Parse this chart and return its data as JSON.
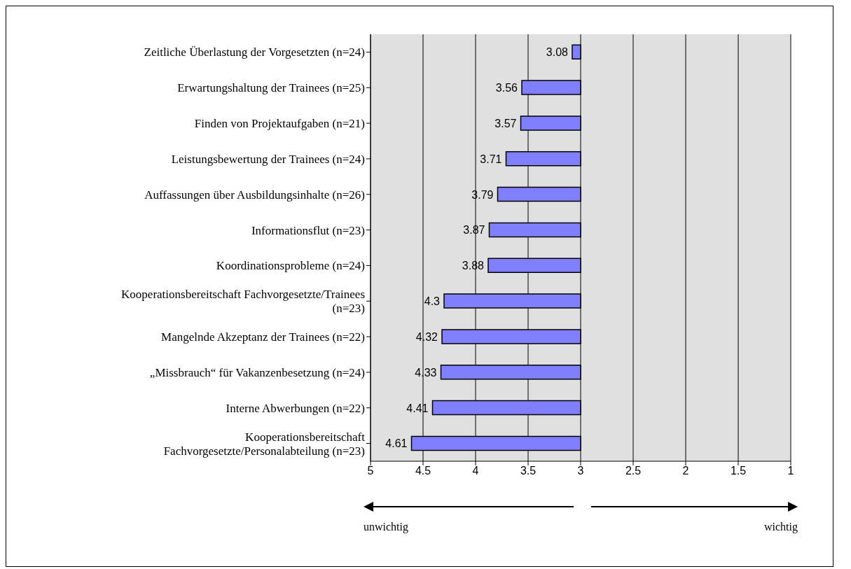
{
  "chart_data": {
    "type": "bar",
    "orientation": "horizontal",
    "categories": [
      "Zeitliche Überlastung der Vorgesetzten (n=24)",
      "Erwartungshaltung der Trainees (n=25)",
      "Finden von Projektaufgaben (n=21)",
      "Leistungsbewertung der Trainees (n=24)",
      "Auffassungen über Ausbildungsinhalte  (n=26)",
      "Informationsflut (n=23)",
      "Koordinationsprobleme (n=24)",
      "Kooperationsbereitschaft Fachvorgesetzte/Trainees (n=23)",
      "Mangelnde Akzeptanz der Trainees (n=22)",
      "„Missbrauch“ für Vakanzenbesetzung (n=24)",
      "Interne Abwerbungen (n=22)",
      "Kooperationsbereitschaft Fachvorgesetzte/Personalabteilung (n=23)"
    ],
    "base": [
      3,
      3,
      3,
      3,
      3,
      3,
      3,
      3,
      3,
      3,
      3,
      3
    ],
    "values": [
      0.08,
      0.56,
      0.57,
      0.71,
      0.79,
      0.87,
      0.88,
      1.3,
      1.32,
      1.33,
      1.41,
      1.61
    ],
    "value_labels": [
      "3.08",
      "3.56",
      "3.57",
      "3.71",
      "3.79",
      "3.87",
      "3.88",
      "4.3",
      "4.32",
      "4.33",
      "4.41",
      "4.61"
    ],
    "color": "#8080ff",
    "xlim": [
      5,
      1
    ],
    "xticks": [
      5,
      4.5,
      4,
      3.5,
      3,
      2.5,
      2,
      1.5,
      1
    ],
    "grid": "x",
    "annotations": [
      "unwichtig",
      "wichtig"
    ]
  }
}
